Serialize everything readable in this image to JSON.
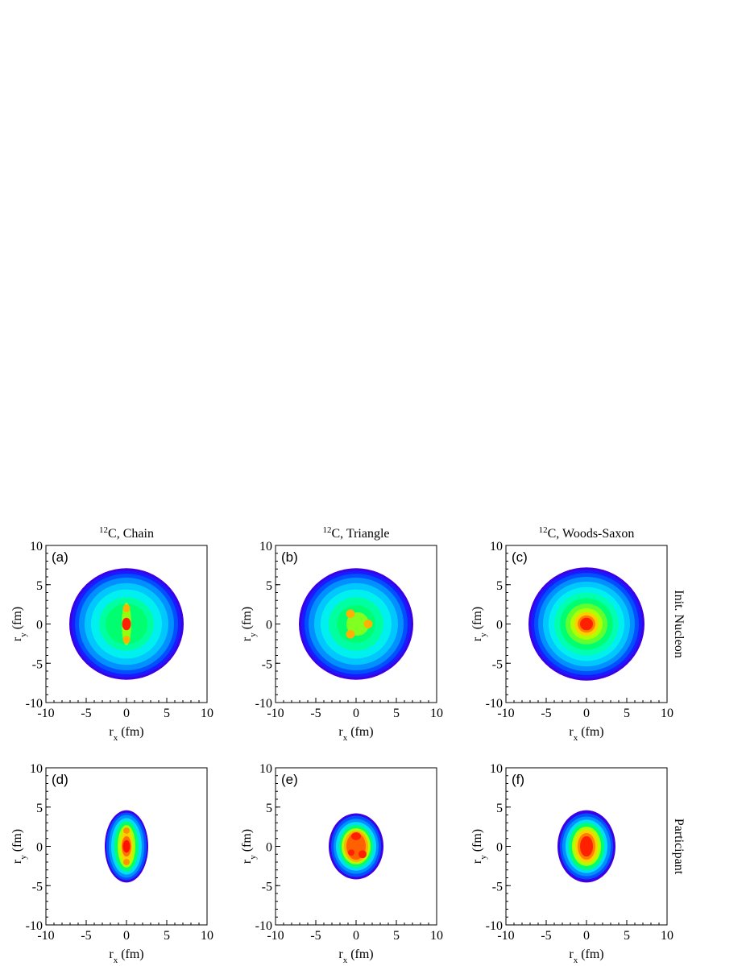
{
  "chart_data": [
    {
      "type": "contour",
      "title": [
        "12",
        "C, Chain"
      ],
      "label": "(a)",
      "row_label": "Init. Nucleon",
      "xlabel": [
        "r",
        "x",
        " (fm)"
      ],
      "ylabel": [
        "r",
        "y",
        " (fm)"
      ],
      "xlim": [
        -10,
        10
      ],
      "ylim": [
        -10,
        10
      ],
      "xticks": [
        -10,
        -5,
        0,
        5,
        10
      ],
      "yticks": [
        -10,
        -5,
        0,
        5,
        10
      ],
      "contours": [
        {
          "rx": 7.1,
          "ry": 7.1,
          "color": "#3c00e6"
        },
        {
          "rx": 6.8,
          "ry": 6.8,
          "color": "#1a1aff"
        },
        {
          "rx": 6.4,
          "ry": 6.4,
          "color": "#0050ff"
        },
        {
          "rx": 5.9,
          "ry": 5.9,
          "color": "#0090ff"
        },
        {
          "rx": 5.2,
          "ry": 5.2,
          "color": "#00c8ff"
        },
        {
          "rx": 4.4,
          "ry": 4.4,
          "color": "#00f0f0"
        },
        {
          "rx": 3.4,
          "ry": 3.4,
          "color": "#00ffa0"
        },
        {
          "rx": 2.6,
          "ry": 2.6,
          "color": "#00ff70"
        },
        {
          "rx": 0.6,
          "ry": 2.7,
          "color": "#90ff10"
        },
        {
          "y": 2,
          "rx": 0.45,
          "ry": 0.5,
          "color": "#ffb000"
        },
        {
          "y": -2,
          "rx": 0.45,
          "ry": 0.5,
          "color": "#ffb000"
        },
        {
          "rx": 0.55,
          "ry": 0.8,
          "color": "#ff2000"
        }
      ]
    },
    {
      "type": "contour",
      "title": [
        "12",
        "C, Triangle"
      ],
      "label": "(b)",
      "xlabel": [
        "r",
        "x",
        " (fm)"
      ],
      "ylabel": [
        "r",
        "y",
        " (fm)"
      ],
      "xlim": [
        -10,
        10
      ],
      "ylim": [
        -10,
        10
      ],
      "xticks": [
        -10,
        -5,
        0,
        5,
        10
      ],
      "yticks": [
        -10,
        -5,
        0,
        5,
        10
      ],
      "contours": [
        {
          "rx": 7.1,
          "ry": 7.1,
          "color": "#3c00e6"
        },
        {
          "rx": 6.8,
          "ry": 6.8,
          "color": "#1a1aff"
        },
        {
          "rx": 6.4,
          "ry": 6.4,
          "color": "#0050ff"
        },
        {
          "rx": 5.9,
          "ry": 5.9,
          "color": "#0090ff"
        },
        {
          "rx": 5.2,
          "ry": 5.2,
          "color": "#00c8ff"
        },
        {
          "rx": 4.4,
          "ry": 4.4,
          "color": "#00f0f0"
        },
        {
          "rx": 3.4,
          "ry": 3.4,
          "color": "#00ffa0"
        },
        {
          "rx": 2.4,
          "ry": 2.4,
          "color": "#00ff70"
        },
        {
          "x": 0.2,
          "rx": 1.4,
          "ry": 1.5,
          "color": "#80ff20"
        },
        {
          "x": -0.7,
          "y": 1.3,
          "rx": 0.55,
          "ry": 0.55,
          "color": "#ffb000"
        },
        {
          "x": -0.7,
          "y": -1.3,
          "rx": 0.55,
          "ry": 0.55,
          "color": "#ffb000"
        },
        {
          "x": 1.5,
          "rx": 0.55,
          "ry": 0.55,
          "color": "#ffb000"
        }
      ]
    },
    {
      "type": "contour",
      "title": [
        "12",
        "C, Woods-Saxon"
      ],
      "label": "(c)",
      "xlabel": [
        "r",
        "x",
        " (fm)"
      ],
      "ylabel": [
        "r",
        "y",
        " (fm)"
      ],
      "xlim": [
        -10,
        10
      ],
      "ylim": [
        -10,
        10
      ],
      "xticks": [
        -10,
        -5,
        0,
        5,
        10
      ],
      "yticks": [
        -10,
        -5,
        0,
        5,
        10
      ],
      "contours": [
        {
          "rx": 7.2,
          "ry": 7.2,
          "color": "#3c00e6"
        },
        {
          "rx": 6.9,
          "ry": 6.9,
          "color": "#1a1aff"
        },
        {
          "rx": 6.5,
          "ry": 6.5,
          "color": "#0050ff"
        },
        {
          "rx": 6.0,
          "ry": 6.0,
          "color": "#0090ff"
        },
        {
          "rx": 5.4,
          "ry": 5.4,
          "color": "#00c8ff"
        },
        {
          "rx": 4.7,
          "ry": 4.7,
          "color": "#00f0f0"
        },
        {
          "rx": 4.0,
          "ry": 4.0,
          "color": "#00ffb0"
        },
        {
          "rx": 3.3,
          "ry": 3.3,
          "color": "#00ff70"
        },
        {
          "rx": 2.6,
          "ry": 2.6,
          "color": "#60ff30"
        },
        {
          "rx": 2.0,
          "ry": 2.0,
          "color": "#b0ff00"
        },
        {
          "rx": 1.5,
          "ry": 1.5,
          "color": "#ffd000"
        },
        {
          "rx": 1.1,
          "ry": 1.1,
          "color": "#ff8000"
        },
        {
          "rx": 0.8,
          "ry": 0.8,
          "color": "#ff2000"
        }
      ]
    },
    {
      "type": "contour",
      "label": "(d)",
      "row_label": "Participant",
      "xlabel": [
        "r",
        "x",
        " (fm)"
      ],
      "ylabel": [
        "r",
        "y",
        " (fm)"
      ],
      "xlim": [
        -10,
        10
      ],
      "ylim": [
        -10,
        10
      ],
      "xticks": [
        -10,
        -5,
        0,
        5,
        10
      ],
      "yticks": [
        -10,
        -5,
        0,
        5,
        10
      ],
      "contours": [
        {
          "rx": 2.7,
          "ry": 4.6,
          "color": "#3c00e6"
        },
        {
          "rx": 2.5,
          "ry": 4.3,
          "color": "#0050ff"
        },
        {
          "rx": 2.2,
          "ry": 4.0,
          "color": "#0090ff"
        },
        {
          "rx": 1.9,
          "ry": 3.6,
          "color": "#00e0f0"
        },
        {
          "rx": 1.5,
          "ry": 3.2,
          "color": "#00ff70"
        },
        {
          "rx": 1.1,
          "ry": 2.7,
          "color": "#b0ff00"
        },
        {
          "rx": 0.7,
          "ry": 2.3,
          "color": "#ffd000"
        },
        {
          "y": 2,
          "rx": 0.4,
          "ry": 0.4,
          "color": "#ff9000"
        },
        {
          "y": -2,
          "rx": 0.4,
          "ry": 0.4,
          "color": "#ff9000"
        },
        {
          "rx": 0.6,
          "ry": 1.3,
          "color": "#ff7000"
        },
        {
          "rx": 0.45,
          "ry": 0.8,
          "color": "#ff1000"
        }
      ]
    },
    {
      "type": "contour",
      "label": "(e)",
      "xlabel": [
        "r",
        "x",
        " (fm)"
      ],
      "ylabel": [
        "r",
        "y",
        " (fm)"
      ],
      "xlim": [
        -10,
        10
      ],
      "ylim": [
        -10,
        10
      ],
      "xticks": [
        -10,
        -5,
        0,
        5,
        10
      ],
      "yticks": [
        -10,
        -5,
        0,
        5,
        10
      ],
      "contours": [
        {
          "rx": 3.4,
          "ry": 4.2,
          "color": "#3c00e6"
        },
        {
          "rx": 3.1,
          "ry": 3.9,
          "color": "#0050ff"
        },
        {
          "rx": 2.8,
          "ry": 3.5,
          "color": "#0090ff"
        },
        {
          "rx": 2.5,
          "ry": 3.1,
          "color": "#00e0f0"
        },
        {
          "rx": 2.1,
          "ry": 2.7,
          "color": "#00ff70"
        },
        {
          "rx": 1.8,
          "ry": 2.3,
          "color": "#b0ff00"
        },
        {
          "rx": 1.5,
          "ry": 2.0,
          "color": "#ffb000"
        },
        {
          "rx": 1.2,
          "ry": 1.7,
          "color": "#ff6000"
        },
        {
          "y": 1.3,
          "rx": 0.6,
          "ry": 0.5,
          "color": "#ff2000"
        },
        {
          "x": 0.8,
          "y": -1.0,
          "rx": 0.5,
          "ry": 0.5,
          "color": "#ff2000"
        },
        {
          "x": -0.6,
          "y": -0.8,
          "rx": 0.4,
          "ry": 0.4,
          "color": "#ff2000"
        }
      ]
    },
    {
      "type": "contour",
      "label": "(f)",
      "xlabel": [
        "r",
        "x",
        " (fm)"
      ],
      "ylabel": [
        "r",
        "y",
        " (fm)"
      ],
      "xlim": [
        -10,
        10
      ],
      "ylim": [
        -10,
        10
      ],
      "xticks": [
        -10,
        -5,
        0,
        5,
        10
      ],
      "yticks": [
        -10,
        -5,
        0,
        5,
        10
      ],
      "contours": [
        {
          "rx": 3.6,
          "ry": 4.6,
          "color": "#3c00e6"
        },
        {
          "rx": 3.3,
          "ry": 4.2,
          "color": "#0050ff"
        },
        {
          "rx": 3.0,
          "ry": 3.8,
          "color": "#0090ff"
        },
        {
          "rx": 2.6,
          "ry": 3.4,
          "color": "#00e0f0"
        },
        {
          "rx": 2.2,
          "ry": 3.0,
          "color": "#00ff70"
        },
        {
          "rx": 1.8,
          "ry": 2.5,
          "color": "#b0ff00"
        },
        {
          "rx": 1.4,
          "ry": 2.1,
          "color": "#ffd000"
        },
        {
          "rx": 1.1,
          "ry": 1.7,
          "color": "#ff8000"
        },
        {
          "rx": 0.8,
          "ry": 1.3,
          "color": "#ff2000"
        }
      ]
    }
  ]
}
